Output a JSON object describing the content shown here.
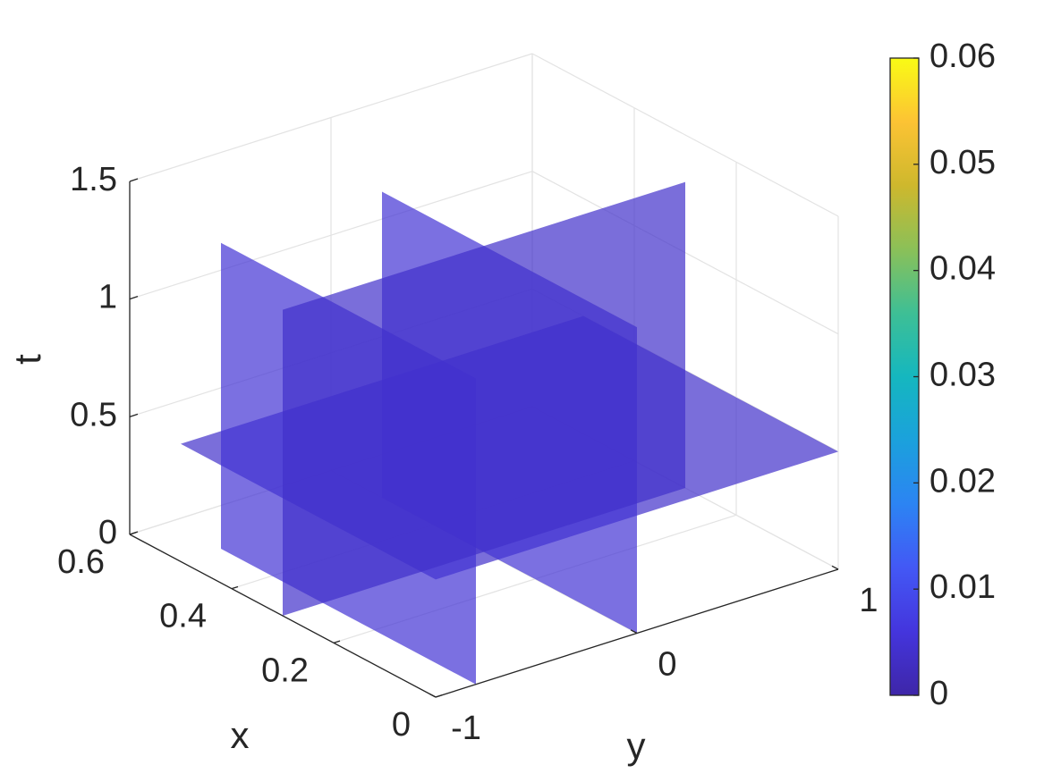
{
  "chart_data": {
    "type": "slice3d",
    "xlabel": "x",
    "ylabel": "y",
    "zlabel": "t",
    "xlim": [
      0,
      0.6
    ],
    "xticks": [
      0,
      0.2,
      0.4,
      0.6
    ],
    "ylim": [
      -1,
      1
    ],
    "yticks": [
      -1,
      0,
      1
    ],
    "zlim": [
      0,
      1.5
    ],
    "zticks": [
      0,
      0.5,
      1,
      1.5
    ],
    "domain": {
      "x": [
        0,
        0.5
      ],
      "y": [
        -1,
        1
      ],
      "t": [
        0,
        1.3
      ]
    },
    "slices": [
      {
        "axis": "t",
        "at": 0.5,
        "value": 0.004
      },
      {
        "axis": "y",
        "at": -0.8,
        "value": 0.005
      },
      {
        "axis": "y",
        "at": 0,
        "value": 0.005
      },
      {
        "axis": "x",
        "at": 0.3,
        "value": 0.004
      }
    ],
    "alpha": 0.7,
    "grid": true,
    "colormap": "parula",
    "clim": [
      0,
      0.06
    ],
    "cticks": [
      0,
      0.01,
      0.02,
      0.03,
      0.04,
      0.05,
      0.06
    ]
  }
}
